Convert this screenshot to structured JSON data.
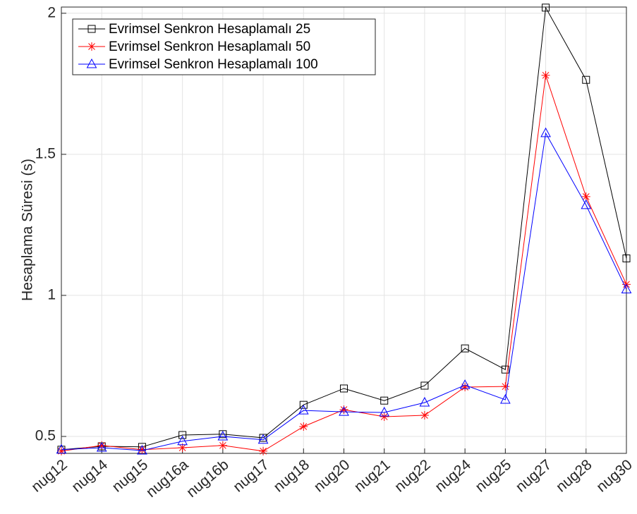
{
  "chart_data": {
    "type": "line",
    "y_label": "Hesaplama Süresi (s)",
    "categories": [
      "nug12",
      "nug14",
      "nug15",
      "nug16a",
      "nug16b",
      "nug17",
      "nug18",
      "nug20",
      "nug21",
      "nug22",
      "nug24",
      "nug25",
      "nug27",
      "nug28",
      "nug30"
    ],
    "series": [
      {
        "name": "Evrimsel Senkron Hesaplamalı 25",
        "color": "#000000",
        "marker": "square",
        "values": [
          0.453,
          0.465,
          0.463,
          0.505,
          0.508,
          0.495,
          0.612,
          0.67,
          0.627,
          0.68,
          0.812,
          0.737,
          2.02,
          1.764,
          1.131
        ]
      },
      {
        "name": "Evrimsel Senkron Hesaplamalı 50",
        "color": "#ff0000",
        "marker": "asterisk",
        "values": [
          0.448,
          0.468,
          0.453,
          0.46,
          0.468,
          0.448,
          0.535,
          0.595,
          0.57,
          0.575,
          0.675,
          0.677,
          1.78,
          1.35,
          1.039
        ]
      },
      {
        "name": "Evrimsel Senkron Hesaplamalı 100",
        "color": "#0000ff",
        "marker": "triangle",
        "values": [
          0.453,
          0.46,
          0.45,
          0.483,
          0.5,
          0.488,
          0.592,
          0.587,
          0.585,
          0.62,
          0.682,
          0.63,
          1.575,
          1.32,
          1.021
        ]
      }
    ],
    "ylim": [
      0.44,
      2.022
    ],
    "yticks": [
      0.5,
      1,
      1.5,
      2
    ],
    "grid": true,
    "legend": "upper left"
  }
}
